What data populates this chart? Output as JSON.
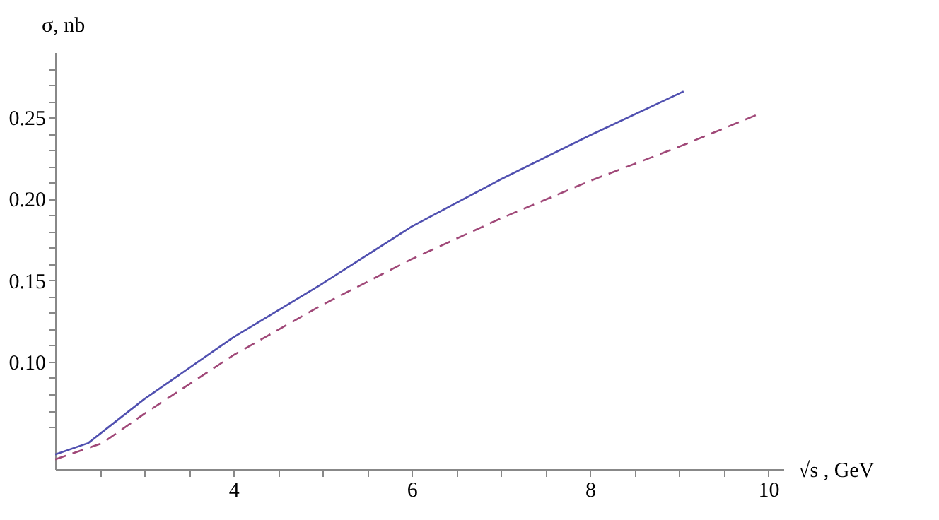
{
  "chart_data": {
    "type": "line",
    "xlabel": "√s , GeV",
    "ylabel": "σ, nb",
    "xlim": [
      2,
      10.17
    ],
    "ylim": [
      0.034,
      0.29
    ],
    "xticks": [
      {
        "value": 2.5,
        "label": null
      },
      {
        "value": 3,
        "label": null
      },
      {
        "value": 3.5,
        "label": null
      },
      4,
      {
        "value": 4.5,
        "label": null
      },
      {
        "value": 5,
        "label": null
      },
      {
        "value": 5.5,
        "label": null
      },
      6,
      {
        "value": 6.5,
        "label": null
      },
      {
        "value": 7,
        "label": null
      },
      {
        "value": 7.5,
        "label": null
      },
      8,
      {
        "value": 8.5,
        "label": null
      },
      {
        "value": 9,
        "label": null
      },
      {
        "value": 9.5,
        "label": null
      },
      10
    ],
    "yticks": [
      {
        "value": 0.06,
        "label": null
      },
      {
        "value": 0.07,
        "label": null
      },
      {
        "value": 0.08,
        "label": null
      },
      {
        "value": 0.09,
        "label": null
      },
      {
        "value": 0.1,
        "label": "0.10"
      },
      {
        "value": 0.11,
        "label": null
      },
      {
        "value": 0.12,
        "label": null
      },
      {
        "value": 0.13,
        "label": null
      },
      {
        "value": 0.14,
        "label": null
      },
      {
        "value": 0.15,
        "label": "0.15"
      },
      {
        "value": 0.16,
        "label": null
      },
      {
        "value": 0.17,
        "label": null
      },
      {
        "value": 0.18,
        "label": null
      },
      {
        "value": 0.19,
        "label": null
      },
      {
        "value": 0.2,
        "label": "0.20"
      },
      {
        "value": 0.21,
        "label": null
      },
      {
        "value": 0.22,
        "label": null
      },
      {
        "value": 0.23,
        "label": null
      },
      {
        "value": 0.24,
        "label": null
      },
      {
        "value": 0.25,
        "label": "0.25"
      },
      {
        "value": 0.26,
        "label": null
      },
      {
        "value": 0.27,
        "label": null
      },
      {
        "value": 0.28,
        "label": null
      }
    ],
    "grid": false,
    "legend": false,
    "marker": "none",
    "series": [
      {
        "color": "#5050b0",
        "line_style": "solid",
        "x": [
          2,
          2.37,
          3,
          4,
          5,
          6,
          7,
          8,
          9.05
        ],
        "values": [
          0.043,
          0.05,
          0.077,
          0.115,
          0.148,
          0.183,
          0.212,
          0.239,
          0.266
        ]
      },
      {
        "color": "#a04878",
        "line_style": "dashed",
        "x": [
          2,
          2.53,
          3,
          4,
          5,
          6,
          7,
          8,
          9,
          9.89
        ],
        "values": [
          0.04,
          0.05,
          0.068,
          0.104,
          0.135,
          0.163,
          0.188,
          0.211,
          0.232,
          0.252
        ]
      }
    ]
  }
}
